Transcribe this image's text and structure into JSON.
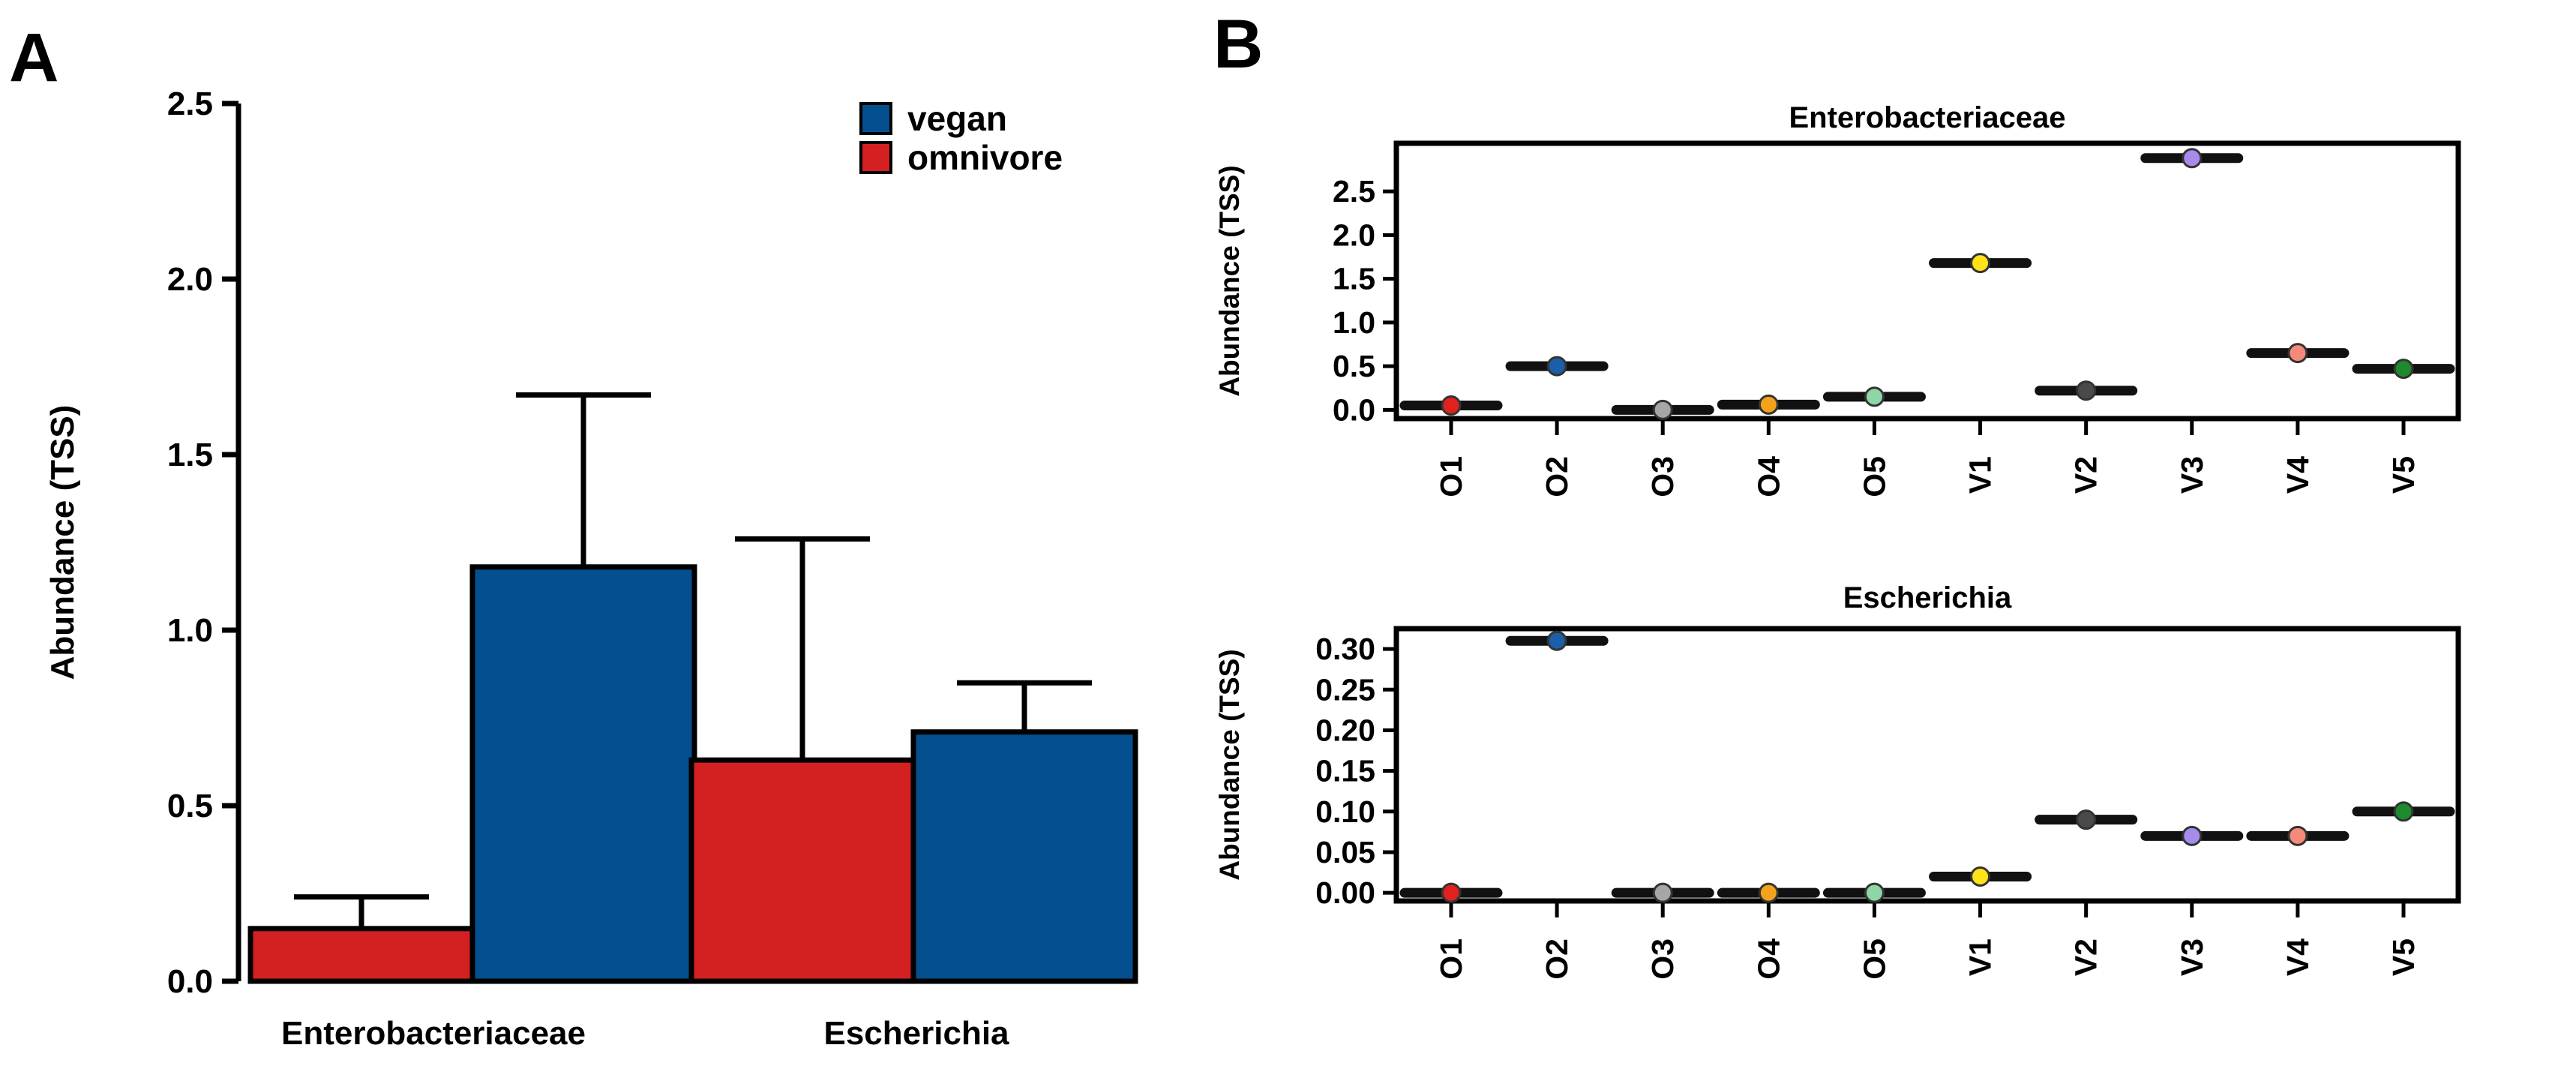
{
  "panels": {
    "a": "A",
    "b": "B"
  },
  "chart_data": [
    {
      "type": "bar",
      "panel": "A",
      "categories": [
        "Enterobacteriaceae",
        "Escherichia"
      ],
      "series": [
        {
          "name": "omnivore",
          "color": "#d42020",
          "values": [
            0.15,
            0.63
          ],
          "error_upper": [
            0.24,
            1.26
          ]
        },
        {
          "name": "vegan",
          "color": "#034f8f",
          "values": [
            1.18,
            0.71
          ],
          "error_upper": [
            1.67,
            0.85
          ]
        }
      ],
      "bar_order": [
        "omnivore",
        "vegan"
      ],
      "legend_order": [
        "vegan",
        "omnivore"
      ],
      "legend_position": "top-right",
      "ylabel": "Abundance (TSS)",
      "ylim": [
        0,
        2.5
      ],
      "yticks": [
        "0.0",
        "0.5",
        "1.0",
        "1.5",
        "2.0",
        "2.5"
      ],
      "ytick_values": [
        0,
        0.5,
        1.0,
        1.5,
        2.0,
        2.5
      ],
      "grid": false
    },
    {
      "type": "scatter",
      "panel": "B",
      "title": "Enterobacteriaceae",
      "categories": [
        "O1",
        "O2",
        "O3",
        "O4",
        "O5",
        "V1",
        "V2",
        "V3",
        "V4",
        "V5"
      ],
      "values": [
        0.05,
        0.5,
        0.0,
        0.06,
        0.15,
        1.68,
        0.22,
        2.88,
        0.65,
        0.47
      ],
      "colors": [
        "#e0221f",
        "#1a5fa8",
        "#a6a6a6",
        "#f5a21b",
        "#8fd6a6",
        "#ffe21a",
        "#4a4a4a",
        "#a78bea",
        "#f58a7a",
        "#1d8a2e"
      ],
      "ylabel": "Abundance (TSS)",
      "ylim": [
        -0.1,
        3.05
      ],
      "yticks": [
        "0.0",
        "0.5",
        "1.0",
        "1.5",
        "2.0",
        "2.5"
      ],
      "ytick_values": [
        0,
        0.5,
        1.0,
        1.5,
        2.0,
        2.5
      ],
      "grid": false
    },
    {
      "type": "scatter",
      "panel": "B",
      "title": "Escherichia",
      "categories": [
        "O1",
        "O2",
        "O3",
        "O4",
        "O5",
        "V1",
        "V2",
        "V3",
        "V4",
        "V5"
      ],
      "values": [
        0.0,
        0.31,
        0.0,
        0.0,
        0.0,
        0.02,
        0.09,
        0.07,
        0.07,
        0.1
      ],
      "colors": [
        "#e0221f",
        "#1a5fa8",
        "#a6a6a6",
        "#f5a21b",
        "#8fd6a6",
        "#ffe21a",
        "#4a4a4a",
        "#a78bea",
        "#f58a7a",
        "#1d8a2e"
      ],
      "ylabel": "Abundance (TSS)",
      "ylim": [
        -0.01,
        0.325
      ],
      "yticks": [
        "0.00",
        "0.05",
        "0.10",
        "0.15",
        "0.20",
        "0.25",
        "0.30"
      ],
      "ytick_values": [
        0,
        0.05,
        0.1,
        0.15,
        0.2,
        0.25,
        0.3
      ],
      "grid": false
    }
  ]
}
